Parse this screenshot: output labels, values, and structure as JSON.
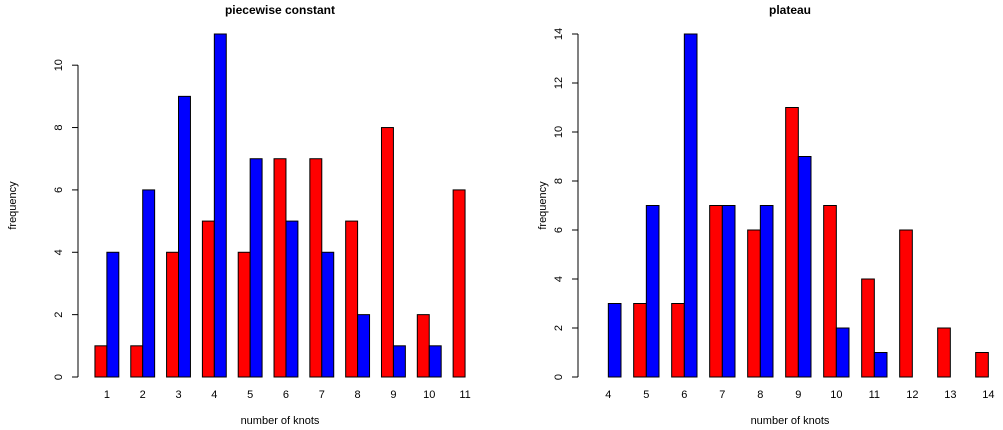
{
  "chart_data": [
    {
      "type": "bar",
      "title": "piecewise constant",
      "x_label": "number of knots",
      "y_label": "frequency",
      "categories": [
        "1",
        "2",
        "3",
        "4",
        "5",
        "6",
        "7",
        "8",
        "9",
        "10",
        "11"
      ],
      "series": [
        {
          "color": "#ff0000",
          "values": [
            1,
            1,
            4,
            5,
            4,
            7,
            7,
            5,
            8,
            2,
            6
          ]
        },
        {
          "color": "#0000ff",
          "values": [
            4,
            6,
            9,
            11,
            7,
            5,
            4,
            2,
            1,
            1,
            0
          ]
        }
      ],
      "ylim": [
        0,
        11
      ],
      "yticks": [
        0,
        2,
        4,
        6,
        8,
        10
      ]
    },
    {
      "type": "bar",
      "title": "plateau",
      "x_label": "number of knots",
      "y_label": "frequency",
      "categories": [
        "4",
        "5",
        "6",
        "7",
        "8",
        "9",
        "10",
        "11",
        "12",
        "13",
        "14"
      ],
      "series": [
        {
          "color": "#ff0000",
          "values": [
            0,
            3,
            3,
            7,
            6,
            11,
            7,
            4,
            6,
            2,
            1
          ]
        },
        {
          "color": "#0000ff",
          "values": [
            3,
            7,
            14,
            7,
            7,
            9,
            2,
            1,
            0,
            0,
            0
          ]
        }
      ],
      "ylim": [
        0,
        14
      ],
      "yticks": [
        0,
        2,
        4,
        6,
        8,
        10,
        12,
        14
      ]
    }
  ]
}
